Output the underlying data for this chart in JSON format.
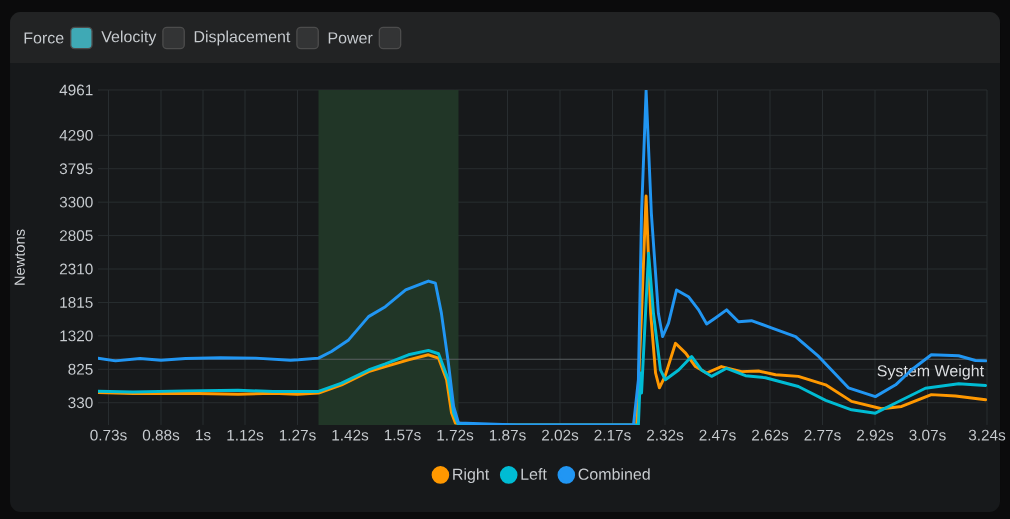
{
  "chart_data": {
    "type": "line",
    "ylabel": "Newtons",
    "annotations": [
      "Force",
      "Velocity",
      "Displacement",
      "Power"
    ],
    "xlim": [
      0.7,
      3.24
    ],
    "ylim": [
      0,
      4961
    ],
    "xticks": [
      {
        "value": 0.73,
        "label": "0.73s"
      },
      {
        "value": 0.88,
        "label": "0.88s"
      },
      {
        "value": 1.0,
        "label": "1s"
      },
      {
        "value": 1.12,
        "label": "1.12s"
      },
      {
        "value": 1.27,
        "label": "1.27s"
      },
      {
        "value": 1.42,
        "label": "1.42s"
      },
      {
        "value": 1.57,
        "label": "1.57s"
      },
      {
        "value": 1.72,
        "label": "1.72s"
      },
      {
        "value": 1.87,
        "label": "1.87s"
      },
      {
        "value": 2.02,
        "label": "2.02s"
      },
      {
        "value": 2.17,
        "label": "2.17s"
      },
      {
        "value": 2.32,
        "label": "2.32s"
      },
      {
        "value": 2.47,
        "label": "2.47s"
      },
      {
        "value": 2.62,
        "label": "2.62s"
      },
      {
        "value": 2.77,
        "label": "2.77s"
      },
      {
        "value": 2.92,
        "label": "2.92s"
      },
      {
        "value": 3.07,
        "label": "3.07s"
      },
      {
        "value": 3.24,
        "label": "3.24s"
      }
    ],
    "yticks": [
      330,
      825,
      1320,
      1815,
      2310,
      2805,
      3300,
      3795,
      4290,
      4961
    ],
    "grid": true,
    "legend": "bottom",
    "marker": "none",
    "line_style": "solid",
    "ref_lines": [
      {
        "axis": "y",
        "value": 975,
        "label": "System Weight",
        "color": "#5a5f62"
      }
    ],
    "bands": [
      {
        "axis": "x",
        "from": 1.33,
        "to": 1.73,
        "color": "#213627"
      }
    ],
    "series": [
      {
        "name": "Right",
        "color": "#ff9800",
        "x": [
          0.7,
          0.8,
          0.95,
          1.1,
          1.2,
          1.27,
          1.33,
          1.396,
          1.473,
          1.521,
          1.587,
          1.644,
          1.673,
          1.696,
          1.71,
          1.721,
          1.8,
          2.0,
          2.239,
          2.253,
          2.266,
          2.279,
          2.293,
          2.304,
          2.32,
          2.35,
          2.379,
          2.407,
          2.439,
          2.481,
          2.539,
          2.587,
          2.636,
          2.701,
          2.779,
          2.853,
          2.939,
          2.996,
          3.081,
          3.15,
          3.236
        ],
        "values": [
          480,
          465,
          470,
          455,
          470,
          455,
          473,
          595,
          790,
          865,
          965,
          1040,
          990,
          670,
          180,
          30,
          0,
          0,
          0,
          1660,
          3390,
          1655,
          770,
          550,
          720,
          1210,
          1065,
          865,
          770,
          865,
          790,
          800,
          745,
          720,
          595,
          350,
          240,
          275,
          450,
          430,
          375
        ]
      },
      {
        "name": "Left",
        "color": "#00bcd4",
        "x": [
          0.7,
          0.8,
          0.95,
          1.1,
          1.2,
          1.3,
          1.33,
          1.396,
          1.473,
          1.521,
          1.587,
          1.644,
          1.673,
          1.701,
          1.716,
          1.73,
          1.9,
          2.1,
          2.244,
          2.25,
          2.253,
          2.273,
          2.287,
          2.307,
          2.321,
          2.359,
          2.396,
          2.424,
          2.453,
          2.496,
          2.55,
          2.607,
          2.701,
          2.779,
          2.853,
          2.921,
          2.979,
          3.064,
          3.159,
          3.236
        ],
        "values": [
          500,
          490,
          505,
          515,
          495,
          495,
          497,
          620,
          815,
          905,
          1040,
          1105,
          1055,
          670,
          180,
          0,
          0,
          0,
          0,
          770,
          475,
          2545,
          1655,
          815,
          670,
          815,
          1015,
          815,
          720,
          840,
          730,
          700,
          570,
          365,
          225,
          175,
          325,
          545,
          610,
          585
        ]
      },
      {
        "name": "Combined",
        "color": "#2196f3",
        "x": [
          0.7,
          0.75,
          0.82,
          0.88,
          0.95,
          1.05,
          1.15,
          1.25,
          1.273,
          1.33,
          1.367,
          1.416,
          1.473,
          1.521,
          1.579,
          1.644,
          1.664,
          1.681,
          1.701,
          1.716,
          1.73,
          1.9,
          2.1,
          2.23,
          2.244,
          2.253,
          2.266,
          2.281,
          2.301,
          2.313,
          2.33,
          2.353,
          2.387,
          2.416,
          2.439,
          2.464,
          2.496,
          2.53,
          2.567,
          2.624,
          2.693,
          2.759,
          2.844,
          2.921,
          2.979,
          3.024,
          3.081,
          3.159,
          3.207,
          3.236
        ],
        "values": [
          990,
          950,
          985,
          960,
          985,
          995,
          990,
          960,
          965,
          990,
          1088,
          1260,
          1605,
          1752,
          2000,
          2132,
          2100,
          1660,
          920,
          275,
          30,
          0,
          0,
          0,
          670,
          3135,
          4950,
          3135,
          1655,
          1310,
          1510,
          2000,
          1900,
          1705,
          1495,
          1585,
          1705,
          1530,
          1545,
          1440,
          1310,
          1015,
          550,
          420,
          595,
          815,
          1040,
          1025,
          955,
          950
        ]
      }
    ]
  }
}
